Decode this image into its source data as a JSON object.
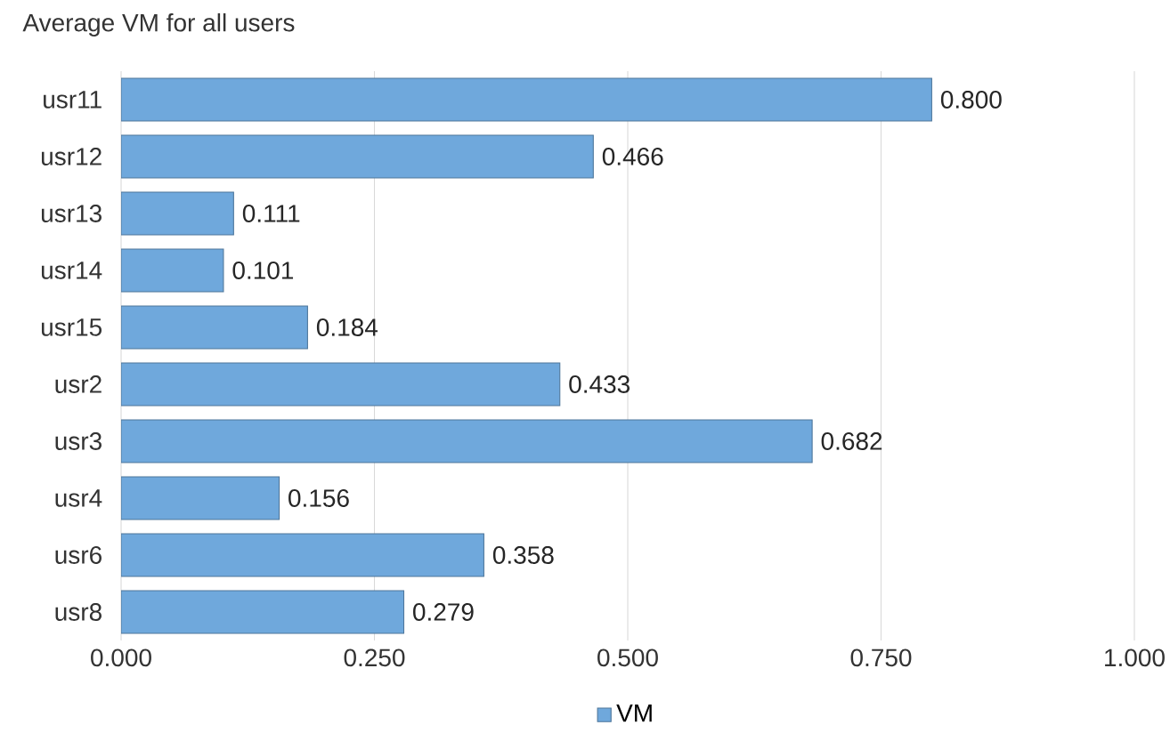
{
  "chart_data": {
    "type": "bar",
    "orientation": "horizontal",
    "title": "Average VM for all users",
    "categories": [
      "usr11",
      "usr12",
      "usr13",
      "usr14",
      "usr15",
      "usr2",
      "usr3",
      "usr4",
      "usr6",
      "usr8"
    ],
    "series": [
      {
        "name": "VM",
        "color": "#6fa8dc",
        "values": [
          0.8,
          0.466,
          0.111,
          0.101,
          0.184,
          0.433,
          0.682,
          0.156,
          0.358,
          0.279
        ],
        "value_labels": [
          "0.800",
          "0.466",
          "0.111",
          "0.101",
          "0.184",
          "0.433",
          "0.682",
          "0.156",
          "0.358",
          "0.279"
        ]
      }
    ],
    "xlim": [
      0,
      1
    ],
    "xticks": [
      {
        "value": 0,
        "label": "0.000"
      },
      {
        "value": 0.25,
        "label": "0.250"
      },
      {
        "value": 0.5,
        "label": "0.500"
      },
      {
        "value": 0.75,
        "label": "0.750"
      },
      {
        "value": 1,
        "label": "1.000"
      }
    ],
    "grid": "x",
    "legend": "bottom"
  }
}
